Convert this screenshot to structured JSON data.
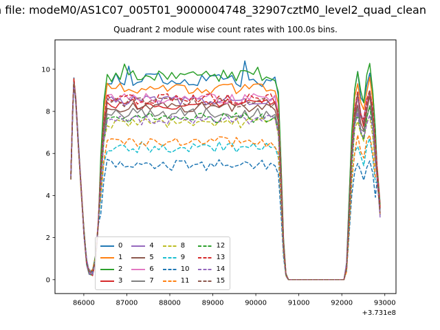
{
  "header": {
    "file_line": "n file: modeM0/AS1C07_005T01_9000004748_32907cztM0_level2_quad_clean"
  },
  "chart_data": {
    "type": "line",
    "title": "Quadrant 2 module wise count rates with 100.0s bins.",
    "xlabel": "",
    "ylabel": "",
    "x_offset_label": "+3.731e8",
    "x_offset": 373100000,
    "bin_seconds": 100.0,
    "xlim": [
      85330,
      93260
    ],
    "ylim": [
      -0.66,
      11.4
    ],
    "xticks": [
      86000,
      87000,
      88000,
      89000,
      90000,
      91000,
      92000,
      93000
    ],
    "yticks": [
      0,
      2,
      4,
      6,
      8,
      10
    ],
    "grid": false,
    "legend": {
      "position": "lower-left-inside",
      "columns": 4,
      "rows": 4
    },
    "noise_seed": 20,
    "envelope": {
      "left_absolute": [
        [
          85700,
          4.9
        ],
        [
          85740,
          7.9
        ],
        [
          85770,
          9.45
        ],
        [
          85815,
          8.5
        ],
        [
          85865,
          6.7
        ],
        [
          85935,
          4.4
        ],
        [
          86005,
          2.2
        ],
        [
          86065,
          0.85
        ],
        [
          86125,
          0.4
        ],
        [
          86205,
          0.33
        ],
        [
          86275,
          1.05
        ],
        [
          86335,
          2.7
        ]
      ],
      "rise_scaled": [
        [
          86395,
          0.6
        ],
        [
          86465,
          0.87
        ]
      ],
      "plateau": {
        "x_start": 86545,
        "x_end": 90445,
        "step": 100
      },
      "drop_scaled": [
        [
          90525,
          0.92
        ],
        [
          90585,
          0.58
        ],
        [
          90645,
          0.2
        ],
        [
          90700,
          0.03
        ]
      ],
      "zero_span": [
        90760,
        92050
      ],
      "right_scaled": [
        [
          92110,
          0.07
        ],
        [
          92170,
          0.38
        ],
        [
          92230,
          0.72
        ],
        [
          92300,
          0.95
        ],
        [
          92370,
          1.03
        ],
        [
          92440,
          0.92
        ],
        [
          92510,
          0.88
        ],
        [
          92580,
          0.99
        ],
        [
          92650,
          1.05
        ],
        [
          92720,
          0.93
        ],
        [
          92780,
          0.74
        ]
      ],
      "right_tail_absolute": [
        [
          92830,
          4.8
        ],
        [
          92890,
          3.35
        ]
      ]
    },
    "series": [
      {
        "name": "0",
        "label": "0",
        "color": "#1f77b4",
        "linestyle": "solid",
        "plateau_level": 9.5,
        "noise": 0.33,
        "spikes": [
          [
            87045,
            10.15
          ],
          [
            89745,
            10.4
          ]
        ]
      },
      {
        "name": "1",
        "label": "1",
        "color": "#ff7f0e",
        "linestyle": "solid",
        "plateau_level": 9.1,
        "noise": 0.26
      },
      {
        "name": "2",
        "label": "2",
        "color": "#2ca02c",
        "linestyle": "solid",
        "plateau_level": 9.7,
        "noise": 0.28,
        "spikes": [
          [
            86945,
            10.25
          ],
          [
            90045,
            10.1
          ]
        ]
      },
      {
        "name": "3",
        "label": "3",
        "color": "#d62728",
        "linestyle": "solid",
        "plateau_level": 8.35,
        "noise": 0.25
      },
      {
        "name": "4",
        "label": "4",
        "color": "#9467bd",
        "linestyle": "solid",
        "plateau_level": 8.5,
        "noise": 0.25
      },
      {
        "name": "5",
        "label": "5",
        "color": "#8c564b",
        "linestyle": "solid",
        "plateau_level": 8.2,
        "noise": 0.25
      },
      {
        "name": "6",
        "label": "6",
        "color": "#e377c2",
        "linestyle": "solid",
        "plateau_level": 8.6,
        "noise": 0.25
      },
      {
        "name": "7",
        "label": "7",
        "color": "#7f7f7f",
        "linestyle": "solid",
        "plateau_level": 7.9,
        "noise": 0.25
      },
      {
        "name": "8",
        "label": "8",
        "color": "#bcbd22",
        "linestyle": "dashed",
        "plateau_level": 7.45,
        "noise": 0.25
      },
      {
        "name": "9",
        "label": "9",
        "color": "#17becf",
        "linestyle": "dashed",
        "plateau_level": 6.3,
        "noise": 0.27
      },
      {
        "name": "10",
        "label": "10",
        "color": "#1f77b4",
        "linestyle": "dashed",
        "plateau_level": 5.45,
        "noise": 0.27
      },
      {
        "name": "11",
        "label": "11",
        "color": "#ff7f0e",
        "linestyle": "dashed",
        "plateau_level": 6.55,
        "noise": 0.27
      },
      {
        "name": "12",
        "label": "12",
        "color": "#2ca02c",
        "linestyle": "dashed",
        "plateau_level": 7.7,
        "noise": 0.25
      },
      {
        "name": "13",
        "label": "13",
        "color": "#d62728",
        "linestyle": "dashed",
        "plateau_level": 8.6,
        "noise": 0.25
      },
      {
        "name": "14",
        "label": "14",
        "color": "#9467bd",
        "linestyle": "dashed",
        "plateau_level": 7.6,
        "noise": 0.25
      },
      {
        "name": "15",
        "label": "15",
        "color": "#8c564b",
        "linestyle": "dashed",
        "plateau_level": 8.45,
        "noise": 0.25
      }
    ]
  }
}
